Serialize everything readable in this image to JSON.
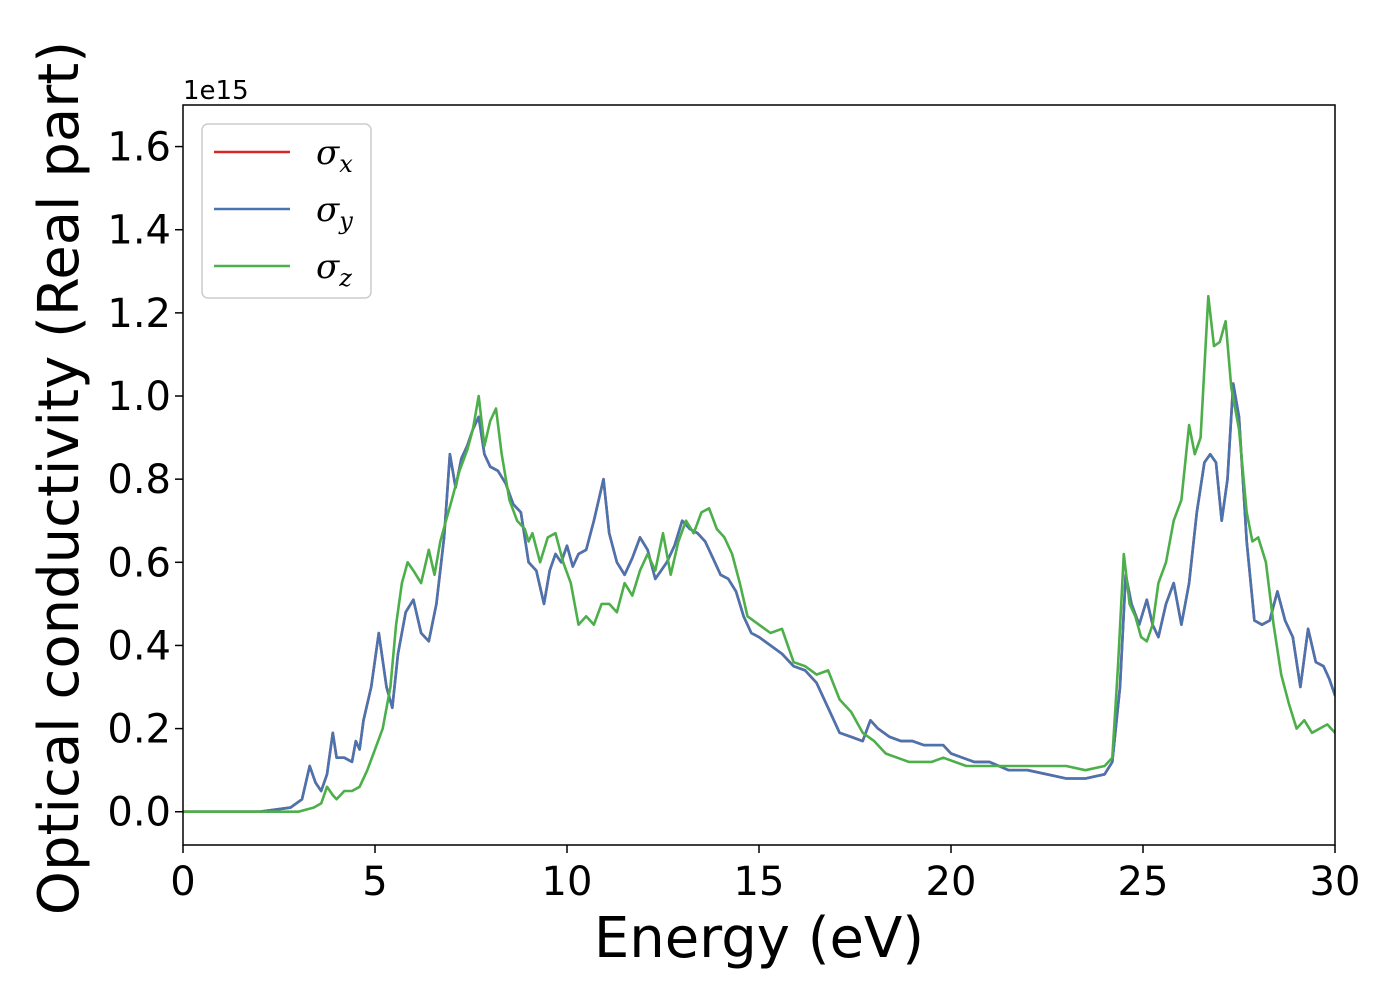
{
  "chart_data": {
    "type": "line",
    "title": "",
    "xlabel": "Energy (eV)",
    "ylabel": "Optical conductivity (Real part)",
    "y_offset_text": "1e15",
    "xlim": [
      0,
      30
    ],
    "ylim": [
      -0.08,
      1.7
    ],
    "x_ticks": [
      0,
      5,
      10,
      15,
      20,
      25,
      30
    ],
    "x_tick_labels": [
      "0",
      "5",
      "10",
      "15",
      "20",
      "25",
      "30"
    ],
    "y_ticks": [
      0.0,
      0.2,
      0.4,
      0.6,
      0.8,
      1.0,
      1.2,
      1.4,
      1.6
    ],
    "y_tick_labels": [
      "0.0",
      "0.2",
      "0.4",
      "0.6",
      "0.8",
      "1.0",
      "1.2",
      "1.4",
      "1.6"
    ],
    "grid": false,
    "legend_position": "top-left",
    "series": [
      {
        "name": "σx",
        "name_base": "σ",
        "name_sub": "x",
        "color": "#d62728",
        "x": [
          0,
          2,
          2.8,
          3.1,
          3.3,
          3.45,
          3.6,
          3.75,
          3.9,
          4.0,
          4.2,
          4.4,
          4.5,
          4.6,
          4.7,
          4.9,
          5.1,
          5.3,
          5.45,
          5.6,
          5.8,
          6.0,
          6.2,
          6.4,
          6.6,
          6.8,
          6.95,
          7.1,
          7.25,
          7.4,
          7.55,
          7.7,
          7.85,
          8.0,
          8.2,
          8.4,
          8.6,
          8.8,
          9.0,
          9.2,
          9.4,
          9.55,
          9.7,
          9.85,
          10.0,
          10.15,
          10.3,
          10.5,
          10.7,
          10.95,
          11.1,
          11.3,
          11.5,
          11.7,
          11.9,
          12.1,
          12.3,
          12.45,
          12.6,
          12.8,
          13.0,
          13.2,
          13.4,
          13.6,
          13.8,
          14.0,
          14.2,
          14.4,
          14.6,
          14.8,
          15.0,
          15.3,
          15.6,
          15.9,
          16.2,
          16.5,
          16.8,
          17.1,
          17.4,
          17.7,
          17.9,
          18.1,
          18.4,
          18.7,
          19.0,
          19.3,
          19.6,
          19.8,
          20.0,
          20.3,
          20.6,
          21.0,
          21.5,
          22.0,
          22.5,
          23.0,
          23.5,
          24.0,
          24.2,
          24.4,
          24.55,
          24.7,
          24.9,
          25.1,
          25.25,
          25.4,
          25.6,
          25.8,
          26.0,
          26.2,
          26.4,
          26.6,
          26.75,
          26.9,
          27.05,
          27.2,
          27.35,
          27.5,
          27.7,
          27.9,
          28.1,
          28.3,
          28.5,
          28.7,
          28.9,
          29.1,
          29.3,
          29.5,
          29.7,
          29.85,
          30.0
        ],
        "values": [
          0.0,
          0.0,
          0.01,
          0.03,
          0.11,
          0.07,
          0.05,
          0.09,
          0.19,
          0.13,
          0.13,
          0.12,
          0.17,
          0.15,
          0.22,
          0.3,
          0.43,
          0.3,
          0.25,
          0.38,
          0.48,
          0.51,
          0.43,
          0.41,
          0.5,
          0.66,
          0.86,
          0.78,
          0.85,
          0.88,
          0.92,
          0.95,
          0.86,
          0.83,
          0.82,
          0.79,
          0.74,
          0.72,
          0.6,
          0.58,
          0.5,
          0.58,
          0.62,
          0.6,
          0.64,
          0.59,
          0.62,
          0.63,
          0.7,
          0.8,
          0.67,
          0.6,
          0.57,
          0.61,
          0.66,
          0.63,
          0.56,
          0.58,
          0.6,
          0.64,
          0.7,
          0.68,
          0.67,
          0.65,
          0.61,
          0.57,
          0.56,
          0.53,
          0.47,
          0.43,
          0.42,
          0.4,
          0.38,
          0.35,
          0.34,
          0.31,
          0.25,
          0.19,
          0.18,
          0.17,
          0.22,
          0.2,
          0.18,
          0.17,
          0.17,
          0.16,
          0.16,
          0.16,
          0.14,
          0.13,
          0.12,
          0.12,
          0.1,
          0.1,
          0.09,
          0.08,
          0.08,
          0.09,
          0.12,
          0.3,
          0.57,
          0.5,
          0.45,
          0.51,
          0.45,
          0.42,
          0.5,
          0.55,
          0.45,
          0.55,
          0.72,
          0.84,
          0.86,
          0.84,
          0.7,
          0.8,
          1.03,
          0.95,
          0.65,
          0.46,
          0.45,
          0.46,
          0.53,
          0.46,
          0.42,
          0.3,
          0.44,
          0.36,
          0.35,
          0.32,
          0.28
        ]
      },
      {
        "name": "σy",
        "name_base": "σ",
        "name_sub": "y",
        "color": "#4a74b0",
        "x": [
          0,
          2,
          2.8,
          3.1,
          3.3,
          3.45,
          3.6,
          3.75,
          3.9,
          4.0,
          4.2,
          4.4,
          4.5,
          4.6,
          4.7,
          4.9,
          5.1,
          5.3,
          5.45,
          5.6,
          5.8,
          6.0,
          6.2,
          6.4,
          6.6,
          6.8,
          6.95,
          7.1,
          7.25,
          7.4,
          7.55,
          7.7,
          7.85,
          8.0,
          8.2,
          8.4,
          8.6,
          8.8,
          9.0,
          9.2,
          9.4,
          9.55,
          9.7,
          9.85,
          10.0,
          10.15,
          10.3,
          10.5,
          10.7,
          10.95,
          11.1,
          11.3,
          11.5,
          11.7,
          11.9,
          12.1,
          12.3,
          12.45,
          12.6,
          12.8,
          13.0,
          13.2,
          13.4,
          13.6,
          13.8,
          14.0,
          14.2,
          14.4,
          14.6,
          14.8,
          15.0,
          15.3,
          15.6,
          15.9,
          16.2,
          16.5,
          16.8,
          17.1,
          17.4,
          17.7,
          17.9,
          18.1,
          18.4,
          18.7,
          19.0,
          19.3,
          19.6,
          19.8,
          20.0,
          20.3,
          20.6,
          21.0,
          21.5,
          22.0,
          22.5,
          23.0,
          23.5,
          24.0,
          24.2,
          24.4,
          24.55,
          24.7,
          24.9,
          25.1,
          25.25,
          25.4,
          25.6,
          25.8,
          26.0,
          26.2,
          26.4,
          26.6,
          26.75,
          26.9,
          27.05,
          27.2,
          27.35,
          27.5,
          27.7,
          27.9,
          28.1,
          28.3,
          28.5,
          28.7,
          28.9,
          29.1,
          29.3,
          29.5,
          29.7,
          29.85,
          30.0
        ],
        "values": [
          0.0,
          0.0,
          0.01,
          0.03,
          0.11,
          0.07,
          0.05,
          0.09,
          0.19,
          0.13,
          0.13,
          0.12,
          0.17,
          0.15,
          0.22,
          0.3,
          0.43,
          0.3,
          0.25,
          0.38,
          0.48,
          0.51,
          0.43,
          0.41,
          0.5,
          0.66,
          0.86,
          0.78,
          0.85,
          0.88,
          0.92,
          0.95,
          0.86,
          0.83,
          0.82,
          0.79,
          0.74,
          0.72,
          0.6,
          0.58,
          0.5,
          0.58,
          0.62,
          0.6,
          0.64,
          0.59,
          0.62,
          0.63,
          0.7,
          0.8,
          0.67,
          0.6,
          0.57,
          0.61,
          0.66,
          0.63,
          0.56,
          0.58,
          0.6,
          0.64,
          0.7,
          0.68,
          0.67,
          0.65,
          0.61,
          0.57,
          0.56,
          0.53,
          0.47,
          0.43,
          0.42,
          0.4,
          0.38,
          0.35,
          0.34,
          0.31,
          0.25,
          0.19,
          0.18,
          0.17,
          0.22,
          0.2,
          0.18,
          0.17,
          0.17,
          0.16,
          0.16,
          0.16,
          0.14,
          0.13,
          0.12,
          0.12,
          0.1,
          0.1,
          0.09,
          0.08,
          0.08,
          0.09,
          0.12,
          0.3,
          0.57,
          0.5,
          0.45,
          0.51,
          0.45,
          0.42,
          0.5,
          0.55,
          0.45,
          0.55,
          0.72,
          0.84,
          0.86,
          0.84,
          0.7,
          0.8,
          1.03,
          0.95,
          0.65,
          0.46,
          0.45,
          0.46,
          0.53,
          0.46,
          0.42,
          0.3,
          0.44,
          0.36,
          0.35,
          0.32,
          0.28
        ]
      },
      {
        "name": "σz",
        "name_base": "σ",
        "name_sub": "z",
        "color": "#4daf4a",
        "x": [
          0,
          2,
          3.0,
          3.4,
          3.6,
          3.75,
          3.9,
          4.0,
          4.2,
          4.4,
          4.6,
          4.8,
          5.0,
          5.2,
          5.4,
          5.55,
          5.7,
          5.85,
          6.0,
          6.2,
          6.4,
          6.55,
          6.7,
          6.85,
          7.0,
          7.2,
          7.4,
          7.55,
          7.7,
          7.85,
          8.0,
          8.15,
          8.3,
          8.5,
          8.7,
          8.9,
          9.0,
          9.1,
          9.3,
          9.5,
          9.7,
          9.9,
          10.1,
          10.3,
          10.5,
          10.7,
          10.9,
          11.1,
          11.3,
          11.5,
          11.7,
          11.9,
          12.1,
          12.3,
          12.5,
          12.7,
          12.9,
          13.1,
          13.3,
          13.5,
          13.7,
          13.9,
          14.1,
          14.3,
          14.5,
          14.7,
          15.0,
          15.3,
          15.6,
          15.9,
          16.2,
          16.5,
          16.8,
          17.1,
          17.4,
          17.7,
          18.0,
          18.3,
          18.6,
          18.9,
          19.2,
          19.5,
          19.8,
          20.1,
          20.4,
          20.7,
          21.0,
          21.5,
          22.0,
          22.5,
          23.0,
          23.5,
          24.0,
          24.2,
          24.35,
          24.5,
          24.65,
          24.8,
          24.95,
          25.1,
          25.25,
          25.4,
          25.6,
          25.8,
          26.0,
          26.2,
          26.35,
          26.5,
          26.7,
          26.85,
          27.0,
          27.15,
          27.3,
          27.5,
          27.7,
          27.85,
          28.0,
          28.2,
          28.4,
          28.6,
          28.8,
          29.0,
          29.2,
          29.4,
          29.6,
          29.8,
          30.0
        ],
        "values": [
          0.0,
          0.0,
          0.0,
          0.01,
          0.02,
          0.06,
          0.04,
          0.03,
          0.05,
          0.05,
          0.06,
          0.1,
          0.15,
          0.2,
          0.3,
          0.45,
          0.55,
          0.6,
          0.58,
          0.55,
          0.63,
          0.57,
          0.65,
          0.7,
          0.75,
          0.82,
          0.87,
          0.92,
          1.0,
          0.88,
          0.94,
          0.97,
          0.86,
          0.75,
          0.7,
          0.68,
          0.65,
          0.67,
          0.6,
          0.66,
          0.67,
          0.6,
          0.55,
          0.45,
          0.47,
          0.45,
          0.5,
          0.5,
          0.48,
          0.55,
          0.52,
          0.58,
          0.62,
          0.58,
          0.67,
          0.57,
          0.65,
          0.7,
          0.67,
          0.72,
          0.73,
          0.68,
          0.66,
          0.62,
          0.55,
          0.47,
          0.45,
          0.43,
          0.44,
          0.36,
          0.35,
          0.33,
          0.34,
          0.27,
          0.24,
          0.19,
          0.17,
          0.14,
          0.13,
          0.12,
          0.12,
          0.12,
          0.13,
          0.12,
          0.11,
          0.11,
          0.11,
          0.11,
          0.11,
          0.11,
          0.11,
          0.1,
          0.11,
          0.13,
          0.35,
          0.62,
          0.5,
          0.47,
          0.42,
          0.41,
          0.45,
          0.55,
          0.6,
          0.7,
          0.75,
          0.93,
          0.86,
          0.9,
          1.24,
          1.12,
          1.13,
          1.18,
          1.02,
          0.92,
          0.72,
          0.65,
          0.66,
          0.6,
          0.45,
          0.33,
          0.26,
          0.2,
          0.22,
          0.19,
          0.2,
          0.21,
          0.19
        ]
      }
    ]
  }
}
